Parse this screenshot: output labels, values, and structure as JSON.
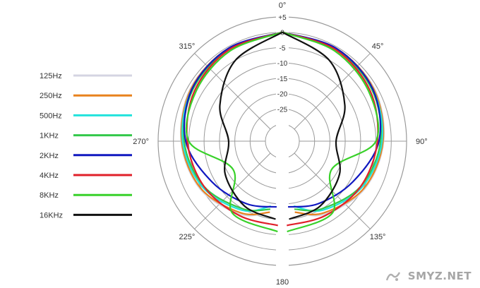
{
  "chart_data": {
    "type": "polar-line",
    "title": "",
    "angle_labels": [
      {
        "deg": 0,
        "text": "0°"
      },
      {
        "deg": 45,
        "text": "45°"
      },
      {
        "deg": 90,
        "text": "90°"
      },
      {
        "deg": 135,
        "text": "135°"
      },
      {
        "deg": 180,
        "text": "180"
      },
      {
        "deg": 225,
        "text": "225°"
      },
      {
        "deg": 270,
        "text": "270°"
      },
      {
        "deg": 315,
        "text": "315°"
      }
    ],
    "radial_ticks": [
      "+5",
      "0",
      "-5",
      "-10",
      "-15",
      "-20",
      "-25"
    ],
    "rlim": [
      -30,
      5
    ],
    "unit": "dB",
    "grid": true,
    "legend_position": "left",
    "series": [
      {
        "name": "125Hz",
        "color": "#d4d4e2",
        "points": [
          [
            0,
            0
          ],
          [
            30,
            -0.5
          ],
          [
            60,
            -1
          ],
          [
            90,
            -2.5
          ],
          [
            120,
            -4.5
          ],
          [
            150,
            -8
          ],
          [
            170,
            -12
          ]
        ]
      },
      {
        "name": "250Hz",
        "color": "#e8821e",
        "points": [
          [
            0,
            0
          ],
          [
            30,
            -0.5
          ],
          [
            60,
            -1.2
          ],
          [
            90,
            -2.7
          ],
          [
            120,
            -4.8
          ],
          [
            150,
            -8.5
          ],
          [
            170,
            -12
          ]
        ]
      },
      {
        "name": "500Hz",
        "color": "#22e3dc",
        "points": [
          [
            0,
            0
          ],
          [
            30,
            -0.6
          ],
          [
            60,
            -1.5
          ],
          [
            90,
            -3
          ],
          [
            120,
            -5.5
          ],
          [
            150,
            -9.5
          ],
          [
            170,
            -14
          ]
        ]
      },
      {
        "name": "1KHz",
        "color": "#33c84a",
        "points": [
          [
            0,
            0
          ],
          [
            30,
            -0.7
          ],
          [
            60,
            -1.8
          ],
          [
            90,
            -3.5
          ],
          [
            120,
            -6
          ],
          [
            150,
            -10
          ],
          [
            170,
            -13
          ]
        ]
      },
      {
        "name": "2KHz",
        "color": "#1018c0",
        "points": [
          [
            0,
            0
          ],
          [
            30,
            -0.5
          ],
          [
            60,
            -1.5
          ],
          [
            90,
            -4
          ],
          [
            120,
            -9
          ],
          [
            150,
            -12
          ],
          [
            175,
            -14
          ]
        ]
      },
      {
        "name": "4KHz",
        "color": "#e0202a",
        "points": [
          [
            0,
            0
          ],
          [
            30,
            -1
          ],
          [
            60,
            -2.5
          ],
          [
            90,
            -4.5
          ],
          [
            120,
            -6
          ],
          [
            150,
            -7.5
          ],
          [
            177,
            -8
          ]
        ]
      },
      {
        "name": "8KHz",
        "color": "#39d12a",
        "points": [
          [
            0,
            0
          ],
          [
            30,
            -1.5
          ],
          [
            60,
            -3
          ],
          [
            90,
            -5
          ],
          [
            120,
            -17
          ],
          [
            145,
            -7
          ],
          [
            177,
            -6
          ]
        ]
      },
      {
        "name": "16KHz",
        "color": "#111111",
        "points": [
          [
            0,
            0
          ],
          [
            30,
            -5
          ],
          [
            60,
            -12
          ],
          [
            90,
            -18
          ],
          [
            120,
            -14
          ],
          [
            150,
            -11
          ],
          [
            175,
            -10
          ]
        ]
      }
    ]
  },
  "watermark": {
    "text": "SMYZ.NET"
  }
}
